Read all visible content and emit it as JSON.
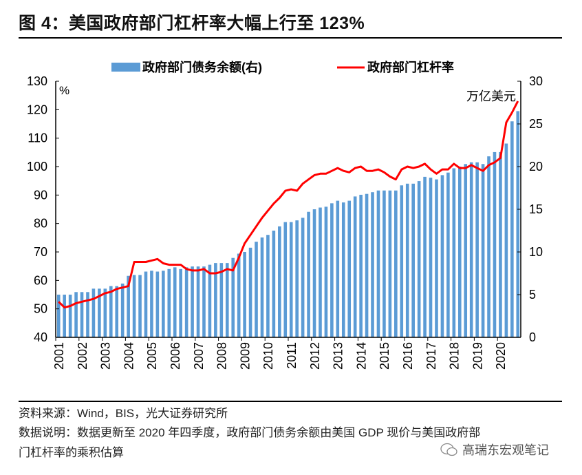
{
  "title": "图 4：美国政府部门杠杆率大幅上行至 123%",
  "source": "资料来源：Wind，BIS，光大证券研究所",
  "note_line1": "数据说明：数据更新至 2020 年四季度，政府部门债务余额由美国 GDP 现价与美国政府部",
  "note_line2": "门杠杆率的乘积估算",
  "watermark": "高瑞东宏观笔记",
  "chart_data": {
    "type": "bar+line",
    "title": "",
    "left_unit": "%",
    "right_unit": "万亿美元",
    "ylim_left": [
      40,
      130
    ],
    "yticks_left": [
      40,
      50,
      60,
      70,
      80,
      90,
      100,
      110,
      120,
      130
    ],
    "ylim_right": [
      0,
      30
    ],
    "yticks_right": [
      0,
      5,
      10,
      15,
      20,
      25,
      30
    ],
    "x_tick_labels": [
      "2001",
      "2002",
      "2003",
      "2004",
      "2005",
      "2006",
      "2007",
      "2008",
      "2009",
      "2010",
      "2011",
      "2012",
      "2013",
      "2014",
      "2015",
      "2016",
      "2017",
      "2018",
      "2019",
      "2020"
    ],
    "x_frequency": "quarterly, 2001Q1–2020Q4",
    "legend_position": "top",
    "grid": false,
    "colors": {
      "bars": "#5b9bd5",
      "line": "#ff0000"
    },
    "series": [
      {
        "name": "政府部门债务余额(右)",
        "type": "bar",
        "axis": "right",
        "values": [
          5.0,
          5.0,
          5.0,
          5.3,
          5.3,
          5.3,
          5.7,
          5.7,
          5.7,
          6.0,
          6.0,
          6.3,
          7.2,
          7.3,
          7.3,
          7.7,
          7.8,
          7.7,
          7.8,
          8.0,
          8.2,
          8.0,
          8.2,
          8.3,
          8.3,
          8.3,
          8.5,
          8.7,
          8.7,
          8.7,
          9.3,
          9.8,
          10.0,
          10.5,
          11.2,
          11.7,
          12.0,
          12.5,
          13.0,
          13.5,
          13.5,
          13.7,
          14.0,
          14.7,
          15.0,
          15.2,
          15.3,
          15.7,
          16.0,
          15.8,
          16.0,
          16.5,
          16.7,
          16.8,
          17.0,
          17.2,
          17.2,
          17.2,
          17.2,
          17.8,
          18.0,
          18.0,
          18.3,
          18.8,
          18.7,
          18.5,
          19.0,
          19.3,
          19.8,
          20.0,
          20.3,
          20.5,
          20.5,
          20.3,
          21.2,
          21.7,
          21.7,
          22.7,
          25.3,
          26.5
        ]
      },
      {
        "name": "政府部门杠杆率",
        "type": "line",
        "axis": "left",
        "values": [
          52.5,
          50.5,
          51,
          52,
          52.5,
          53,
          53.5,
          54.5,
          55.5,
          56,
          57,
          57.5,
          58,
          66.5,
          66.5,
          66.5,
          67,
          67.5,
          66,
          65.5,
          65.5,
          65.5,
          64,
          63.5,
          63.5,
          64,
          62.5,
          62.5,
          63,
          64,
          63.5,
          68,
          73,
          76,
          79,
          82,
          84.5,
          87,
          89,
          91.5,
          92,
          91.5,
          94,
          95.5,
          97,
          97.5,
          97.5,
          98.5,
          99.5,
          98.5,
          98,
          99.5,
          100,
          98.5,
          98.5,
          99,
          98,
          96.5,
          95.5,
          99,
          100,
          99.5,
          100,
          101,
          99,
          97.5,
          99,
          99,
          101,
          99.5,
          99.5,
          100.5,
          99.5,
          98.5,
          100.5,
          101.5,
          103,
          115.5,
          119,
          123
        ]
      }
    ]
  }
}
